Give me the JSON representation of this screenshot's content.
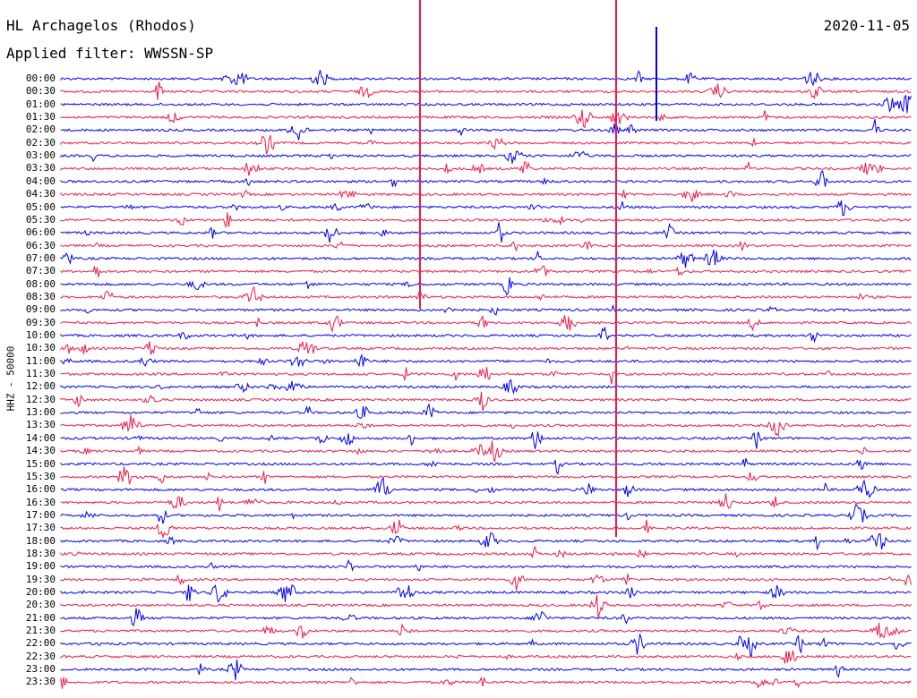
{
  "header": {
    "station": "HL Archagelos (Rhodos)",
    "filter": "Applied filter: WWSSN-SP",
    "date": "2020-11-05"
  },
  "channel_label": "HHZ - 50000",
  "trace_colors": [
    "#0000ee",
    "#ee1a4a"
  ],
  "time_labels": [
    "00:00",
    "00:30",
    "01:00",
    "01:30",
    "02:00",
    "02:30",
    "03:00",
    "03:30",
    "04:00",
    "04:30",
    "05:00",
    "05:30",
    "06:00",
    "06:30",
    "07:00",
    "07:30",
    "08:00",
    "08:30",
    "09:00",
    "09:30",
    "10:00",
    "10:30",
    "11:00",
    "11:30",
    "12:00",
    "12:30",
    "13:00",
    "13:30",
    "14:00",
    "14:30",
    "15:00",
    "15:30",
    "16:00",
    "16:30",
    "17:00",
    "17:30",
    "18:00",
    "18:30",
    "19:00",
    "19:30",
    "20:00",
    "20:30",
    "21:00",
    "21:30",
    "22:00",
    "22:30",
    "23:00",
    "23:30"
  ]
}
